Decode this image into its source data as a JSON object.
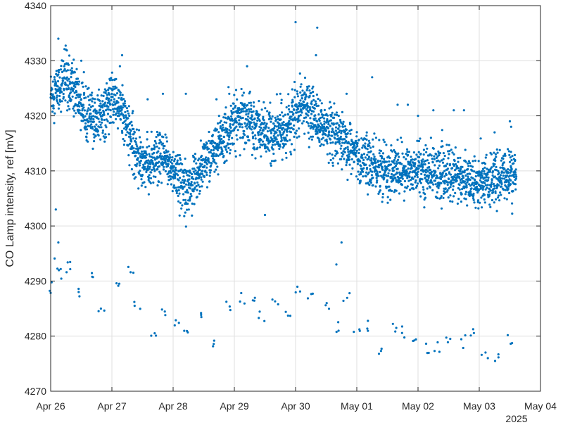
{
  "chart_data": {
    "type": "scatter",
    "title": "",
    "xlabel": "",
    "ylabel": "CO Lamp intensity, ref [mV]",
    "year_label": "2025",
    "xlim": [
      "2025-04-26",
      "2025-05-04"
    ],
    "ylim": [
      4270,
      4340
    ],
    "x_ticks": [
      {
        "date": "2025-04-26",
        "label": "Apr 26"
      },
      {
        "date": "2025-04-27",
        "label": "Apr 27"
      },
      {
        "date": "2025-04-28",
        "label": "Apr 28"
      },
      {
        "date": "2025-04-29",
        "label": "Apr 29"
      },
      {
        "date": "2025-04-30",
        "label": "Apr 30"
      },
      {
        "date": "2025-05-01",
        "label": "May 01"
      },
      {
        "date": "2025-05-02",
        "label": "May 02"
      },
      {
        "date": "2025-05-03",
        "label": "May 03"
      },
      {
        "date": "2025-05-04",
        "label": "May 04"
      }
    ],
    "y_ticks": [
      4270,
      4280,
      4290,
      4300,
      4310,
      4320,
      4330,
      4340
    ],
    "grid": true,
    "marker_color": "#0072BD",
    "series": [
      {
        "main_trend": [
          [
            "2025-04-26T00:00",
            4324
          ],
          [
            "2025-04-26T03:00",
            4325
          ],
          [
            "2025-04-26T06:00",
            4327
          ],
          [
            "2025-04-26T09:00",
            4325
          ],
          [
            "2025-04-26T12:00",
            4322
          ],
          [
            "2025-04-26T15:00",
            4320
          ],
          [
            "2025-04-26T18:00",
            4319
          ],
          [
            "2025-04-26T21:00",
            4321
          ],
          [
            "2025-04-27T00:00",
            4323
          ],
          [
            "2025-04-27T03:00",
            4322
          ],
          [
            "2025-04-27T06:00",
            4318
          ],
          [
            "2025-04-27T09:00",
            4314
          ],
          [
            "2025-04-27T12:00",
            4312
          ],
          [
            "2025-04-27T15:00",
            4311
          ],
          [
            "2025-04-27T18:00",
            4312
          ],
          [
            "2025-04-27T21:00",
            4312
          ],
          [
            "2025-04-28T00:00",
            4310
          ],
          [
            "2025-04-28T03:00",
            4308
          ],
          [
            "2025-04-28T06:00",
            4307
          ],
          [
            "2025-04-28T09:00",
            4309
          ],
          [
            "2025-04-28T12:00",
            4311
          ],
          [
            "2025-04-28T15:00",
            4313
          ],
          [
            "2025-04-28T18:00",
            4315
          ],
          [
            "2025-04-28T21:00",
            4317
          ],
          [
            "2025-04-29T00:00",
            4319
          ],
          [
            "2025-04-29T03:00",
            4320
          ],
          [
            "2025-04-29T06:00",
            4319
          ],
          [
            "2025-04-29T09:00",
            4318
          ],
          [
            "2025-04-29T12:00",
            4317
          ],
          [
            "2025-04-29T15:00",
            4316
          ],
          [
            "2025-04-29T18:00",
            4317
          ],
          [
            "2025-04-29T21:00",
            4318
          ],
          [
            "2025-04-30T00:00",
            4320
          ],
          [
            "2025-04-30T03:00",
            4322
          ],
          [
            "2025-04-30T06:00",
            4321
          ],
          [
            "2025-04-30T09:00",
            4319
          ],
          [
            "2025-04-30T12:00",
            4317
          ],
          [
            "2025-04-30T15:00",
            4316
          ],
          [
            "2025-04-30T18:00",
            4315
          ],
          [
            "2025-04-30T21:00",
            4314
          ],
          [
            "2025-05-01T00:00",
            4313
          ],
          [
            "2025-05-01T03:00",
            4312
          ],
          [
            "2025-05-01T06:00",
            4311
          ],
          [
            "2025-05-01T09:00",
            4310
          ],
          [
            "2025-05-01T12:00",
            4310
          ],
          [
            "2025-05-01T15:00",
            4310
          ],
          [
            "2025-05-01T18:00",
            4310
          ],
          [
            "2025-05-01T21:00",
            4310
          ],
          [
            "2025-05-02T00:00",
            4310
          ],
          [
            "2025-05-02T03:00",
            4310
          ],
          [
            "2025-05-02T06:00",
            4310
          ],
          [
            "2025-05-02T09:00",
            4309
          ],
          [
            "2025-05-02T12:00",
            4309
          ],
          [
            "2025-05-02T15:00",
            4309
          ],
          [
            "2025-05-02T18:00",
            4308
          ],
          [
            "2025-05-02T21:00",
            4308
          ],
          [
            "2025-05-03T00:00",
            4308
          ],
          [
            "2025-05-03T03:00",
            4308
          ],
          [
            "2025-05-03T06:00",
            4308
          ],
          [
            "2025-05-03T09:00",
            4309
          ],
          [
            "2025-05-03T12:00",
            4309
          ],
          [
            "2025-05-03T14:30",
            4309
          ]
        ],
        "spread_mV": 2.2,
        "scatter_mV": 6,
        "lower_cluster": [
          [
            "2025-04-26T00:00",
            4289
          ],
          [
            "2025-04-26T03:00",
            4293
          ],
          [
            "2025-04-26T05:00",
            4291
          ],
          [
            "2025-04-26T08:00",
            4293
          ],
          [
            "2025-04-26T12:00",
            4288
          ],
          [
            "2025-04-26T17:00",
            4291
          ],
          [
            "2025-04-26T20:00",
            4285
          ],
          [
            "2025-04-27T03:00",
            4289
          ],
          [
            "2025-04-27T07:00",
            4292
          ],
          [
            "2025-04-27T10:00",
            4285
          ],
          [
            "2025-04-27T16:00",
            4281
          ],
          [
            "2025-04-27T21:00",
            4284
          ],
          [
            "2025-04-28T01:00",
            4282
          ],
          [
            "2025-04-28T05:00",
            4281
          ],
          [
            "2025-04-28T12:00",
            4284
          ],
          [
            "2025-04-28T17:00",
            4279
          ],
          [
            "2025-04-28T21:00",
            4285
          ],
          [
            "2025-04-29T03:00",
            4287
          ],
          [
            "2025-04-29T08:00",
            4286
          ],
          [
            "2025-04-29T11:00",
            4284
          ],
          [
            "2025-04-29T16:00",
            4287
          ],
          [
            "2025-04-29T21:00",
            4284
          ],
          [
            "2025-04-30T01:00",
            4289
          ],
          [
            "2025-04-30T06:00",
            4287
          ],
          [
            "2025-04-30T13:00",
            4285
          ],
          [
            "2025-04-30T17:00",
            4282
          ],
          [
            "2025-04-30T20:00",
            4287
          ],
          [
            "2025-05-01T00:00",
            4281
          ],
          [
            "2025-05-01T05:00",
            4282
          ],
          [
            "2025-05-01T09:00",
            4278
          ],
          [
            "2025-05-01T14:00",
            4282
          ],
          [
            "2025-05-01T18:00",
            4281
          ],
          [
            "2025-05-01T22:00",
            4280
          ],
          [
            "2025-05-02T03:00",
            4278
          ],
          [
            "2025-05-02T07:00",
            4278
          ],
          [
            "2025-05-02T12:00",
            4280
          ],
          [
            "2025-05-02T18:00",
            4279
          ],
          [
            "2025-05-02T22:00",
            4281
          ],
          [
            "2025-05-03T02:00",
            4277
          ],
          [
            "2025-05-03T07:00",
            4276
          ],
          [
            "2025-05-03T12:00",
            4279
          ]
        ],
        "outliers": [
          [
            "2025-04-26T03:00",
            4334
          ],
          [
            "2025-04-26T06:00",
            4332
          ],
          [
            "2025-04-26T12:00",
            4330
          ],
          [
            "2025-04-27T04:00",
            4331
          ],
          [
            "2025-04-27T14:00",
            4323
          ],
          [
            "2025-04-27T20:00",
            4324
          ],
          [
            "2025-04-28T05:00",
            4324
          ],
          [
            "2025-04-28T17:00",
            4323
          ],
          [
            "2025-04-28T22:00",
            4324
          ],
          [
            "2025-04-29T05:00",
            4329
          ],
          [
            "2025-04-29T12:00",
            4302
          ],
          [
            "2025-04-29T18:00",
            4324
          ],
          [
            "2025-04-30T00:00",
            4337
          ],
          [
            "2025-04-30T08:00",
            4331
          ],
          [
            "2025-04-30T08:30",
            4336
          ],
          [
            "2025-04-30T20:00",
            4324
          ],
          [
            "2025-05-01T06:00",
            4327
          ],
          [
            "2025-05-01T16:00",
            4322
          ],
          [
            "2025-05-01T20:00",
            4322
          ],
          [
            "2025-05-02T00:00",
            4320
          ],
          [
            "2025-05-02T06:00",
            4321
          ],
          [
            "2025-05-02T14:00",
            4321
          ],
          [
            "2025-05-02T18:00",
            4321
          ],
          [
            "2025-05-03T06:00",
            4317
          ],
          [
            "2025-05-03T12:00",
            4319
          ],
          [
            "2025-05-03T12:30",
            4318
          ],
          [
            "2025-04-26T02:00",
            4303
          ],
          [
            "2025-04-26T03:00",
            4297
          ],
          [
            "2025-04-30T18:00",
            4297
          ],
          [
            "2025-04-30T16:00",
            4293
          ]
        ]
      }
    ]
  }
}
